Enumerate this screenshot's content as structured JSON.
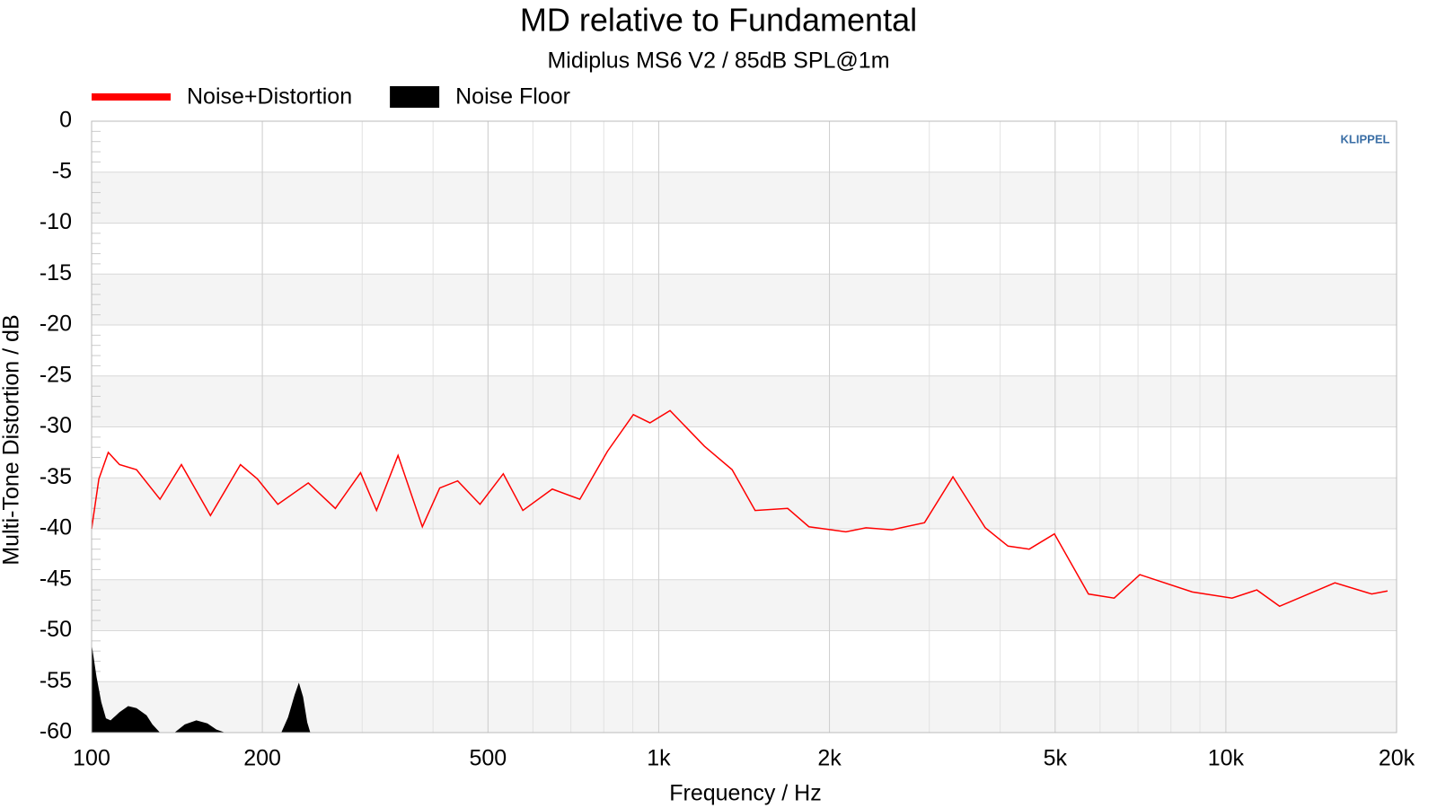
{
  "chart_data": {
    "type": "line",
    "title": "MD relative to Fundamental",
    "subtitle": "Midiplus MS6 V2 / 85dB SPL@1m",
    "xlabel": "Frequency / Hz",
    "ylabel": "Multi-Tone Distortion / dB",
    "watermark": "KLIPPEL",
    "xscale": "log",
    "xlim": [
      100,
      20000
    ],
    "ylim": [
      -60,
      0
    ],
    "xticks": [
      100,
      200,
      500,
      {
        "value": 1000,
        "label": "1k"
      },
      {
        "value": 2000,
        "label": "2k"
      },
      {
        "value": 5000,
        "label": "5k"
      },
      {
        "value": 10000,
        "label": "10k"
      },
      {
        "value": 20000,
        "label": "20k"
      }
    ],
    "yticks": [
      0,
      -5,
      -10,
      -15,
      -20,
      -25,
      -30,
      -35,
      -40,
      -45,
      -50,
      -55,
      -60
    ],
    "grid": true,
    "legend": "top-left",
    "series": [
      {
        "name": "Noise+Distortion",
        "type": "line",
        "color": "#ff0000",
        "x": [
          100,
          103,
          107,
          112,
          120,
          132,
          144,
          162,
          183,
          196,
          213,
          241,
          269,
          298,
          318,
          347,
          383,
          411,
          442,
          484,
          532,
          576,
          649,
          726,
          812,
          902,
          965,
          1047,
          1204,
          1347,
          1479,
          1688,
          1840,
          2138,
          2320,
          2576,
          2942,
          3302,
          3765,
          4130,
          4500,
          4985,
          5724,
          6354,
          7052,
          8727,
          10253,
          11339,
          12436,
          15570,
          18081,
          19280
        ],
        "values": [
          -40,
          -35.1,
          -32.5,
          -33.7,
          -34.2,
          -37.1,
          -33.7,
          -38.7,
          -33.7,
          -35.1,
          -37.6,
          -35.5,
          -38.0,
          -34.5,
          -38.2,
          -32.8,
          -39.8,
          -36.0,
          -35.3,
          -37.6,
          -34.6,
          -38.2,
          -36.1,
          -37.1,
          -32.4,
          -28.8,
          -29.6,
          -28.4,
          -31.9,
          -34.2,
          -38.2,
          -38.0,
          -39.8,
          -40.3,
          -39.9,
          -40.1,
          -39.4,
          -34.9,
          -39.9,
          -41.7,
          -42.0,
          -40.5,
          -46.4,
          -46.8,
          -44.5,
          -46.2,
          -46.8,
          -46.0,
          -47.6,
          -45.3,
          -46.4,
          -46.1
        ]
      },
      {
        "name": "Noise Floor",
        "type": "area",
        "color": "#000000",
        "x": [
          100,
          102,
          104,
          106,
          108,
          112,
          116,
          120,
          125,
          128,
          132,
          140,
          146,
          153,
          160,
          166,
          172,
          216,
          222,
          228,
          232,
          236,
          240,
          243
        ],
        "values": [
          -51.3,
          -54.5,
          -57,
          -58.6,
          -58.8,
          -58,
          -57.4,
          -57.6,
          -58.3,
          -59.2,
          -60,
          -60,
          -59.2,
          -58.8,
          -59.1,
          -59.7,
          -60,
          -60,
          -58.5,
          -56.3,
          -55.1,
          -56.5,
          -59,
          -60
        ]
      }
    ]
  }
}
